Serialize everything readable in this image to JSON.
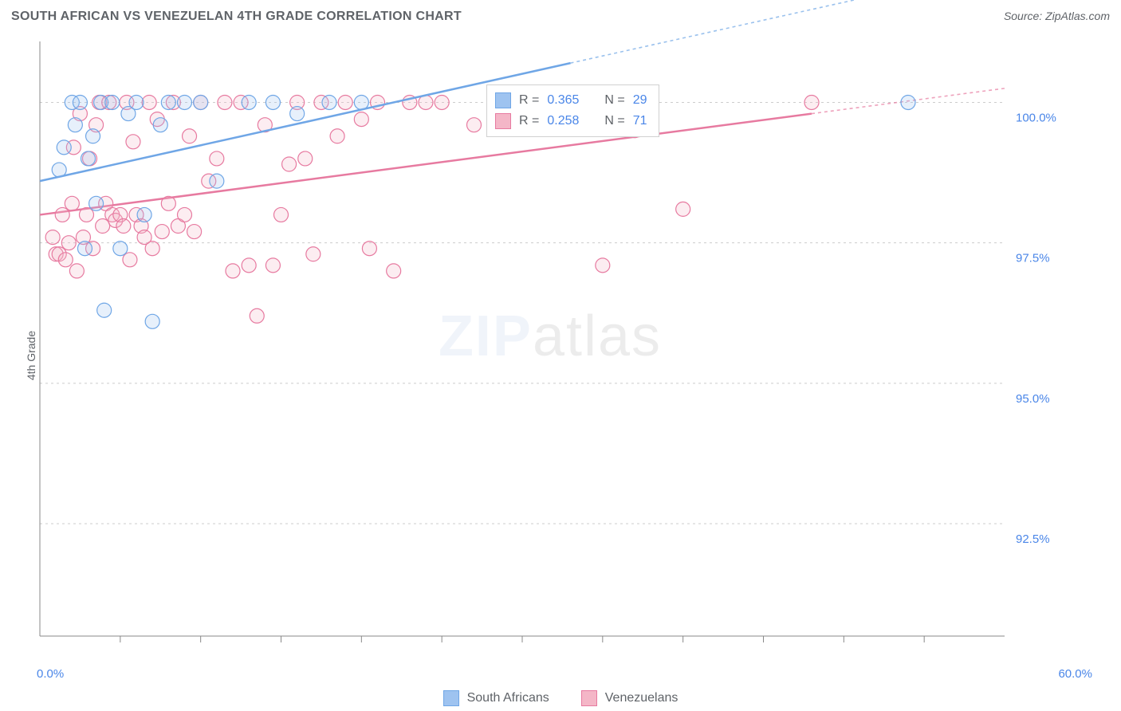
{
  "title": "SOUTH AFRICAN VS VENEZUELAN 4TH GRADE CORRELATION CHART",
  "source_prefix": "Source: ",
  "source_name": "ZipAtlas.com",
  "y_axis_label": "4th Grade",
  "watermark_bold": "ZIP",
  "watermark_rest": "atlas",
  "chart": {
    "type": "scatter-with-trend",
    "background_color": "#ffffff",
    "grid_color": "#cccccc",
    "axis_color": "#888888",
    "xlim": [
      0.0,
      60.0
    ],
    "ylim": [
      90.5,
      101.0
    ],
    "x_tick_positions": [
      5,
      10,
      15,
      20,
      25,
      30,
      35,
      40,
      45,
      50,
      55
    ],
    "x_min_label": "0.0%",
    "x_max_label": "60.0%",
    "y_ticks": [
      {
        "v": 92.5,
        "label": "92.5%"
      },
      {
        "v": 95.0,
        "label": "95.0%"
      },
      {
        "v": 97.5,
        "label": "97.5%"
      },
      {
        "v": 100.0,
        "label": "100.0%"
      }
    ],
    "marker_radius": 9,
    "label_fontsize": 15,
    "value_color": "#4a86e8",
    "series": [
      {
        "key": "south_africans",
        "name": "South Africans",
        "color_fill": "#9ec3f0",
        "color_stroke": "#6fa6e6",
        "R_label": "R = ",
        "R": "0.365",
        "N_label": "N = ",
        "N": "29",
        "trend": {
          "x1": 0,
          "y1": 98.6,
          "x2": 33,
          "y2": 100.7,
          "dash_to_x": 60
        },
        "points": [
          [
            1.2,
            98.8
          ],
          [
            1.5,
            99.2
          ],
          [
            2.0,
            100.0
          ],
          [
            2.2,
            99.6
          ],
          [
            2.5,
            100.0
          ],
          [
            2.8,
            97.4
          ],
          [
            3.0,
            99.0
          ],
          [
            3.3,
            99.4
          ],
          [
            3.5,
            98.2
          ],
          [
            3.8,
            100.0
          ],
          [
            4.0,
            96.3
          ],
          [
            4.5,
            100.0
          ],
          [
            5.0,
            97.4
          ],
          [
            5.5,
            99.8
          ],
          [
            6.0,
            100.0
          ],
          [
            6.5,
            98.0
          ],
          [
            7.0,
            96.1
          ],
          [
            7.5,
            99.6
          ],
          [
            8.0,
            100.0
          ],
          [
            9.0,
            100.0
          ],
          [
            10.0,
            100.0
          ],
          [
            11.0,
            98.6
          ],
          [
            13.0,
            100.0
          ],
          [
            14.5,
            100.0
          ],
          [
            16.0,
            99.8
          ],
          [
            18.0,
            100.0
          ],
          [
            20.0,
            100.0
          ],
          [
            33.0,
            100.0
          ],
          [
            54.0,
            100.0
          ]
        ]
      },
      {
        "key": "venezuelans",
        "name": "Venezuelans",
        "color_fill": "#f4b6c7",
        "color_stroke": "#e77aa0",
        "R_label": "R = ",
        "R": "0.258",
        "N_label": "N = ",
        "N": "71",
        "trend": {
          "x1": 0,
          "y1": 98.0,
          "x2": 48,
          "y2": 99.8,
          "dash_to_x": 60
        },
        "points": [
          [
            0.8,
            97.6
          ],
          [
            1.0,
            97.3
          ],
          [
            1.2,
            97.3
          ],
          [
            1.4,
            98.0
          ],
          [
            1.6,
            97.2
          ],
          [
            1.8,
            97.5
          ],
          [
            2.0,
            98.2
          ],
          [
            2.1,
            99.2
          ],
          [
            2.3,
            97.0
          ],
          [
            2.5,
            99.8
          ],
          [
            2.7,
            97.6
          ],
          [
            2.9,
            98.0
          ],
          [
            3.1,
            99.0
          ],
          [
            3.3,
            97.4
          ],
          [
            3.5,
            99.6
          ],
          [
            3.7,
            100.0
          ],
          [
            3.9,
            97.8
          ],
          [
            4.1,
            98.2
          ],
          [
            4.3,
            100.0
          ],
          [
            4.5,
            98.0
          ],
          [
            4.7,
            97.9
          ],
          [
            5.0,
            98.0
          ],
          [
            5.2,
            97.8
          ],
          [
            5.4,
            100.0
          ],
          [
            5.6,
            97.2
          ],
          [
            5.8,
            99.3
          ],
          [
            6.0,
            98.0
          ],
          [
            6.3,
            97.8
          ],
          [
            6.5,
            97.6
          ],
          [
            6.8,
            100.0
          ],
          [
            7.0,
            97.4
          ],
          [
            7.3,
            99.7
          ],
          [
            7.6,
            97.7
          ],
          [
            8.0,
            98.2
          ],
          [
            8.3,
            100.0
          ],
          [
            8.6,
            97.8
          ],
          [
            9.0,
            98.0
          ],
          [
            9.3,
            99.4
          ],
          [
            9.6,
            97.7
          ],
          [
            10.0,
            100.0
          ],
          [
            10.5,
            98.6
          ],
          [
            11.0,
            99.0
          ],
          [
            11.5,
            100.0
          ],
          [
            12.0,
            97.0
          ],
          [
            12.5,
            100.0
          ],
          [
            13.0,
            97.1
          ],
          [
            13.5,
            96.2
          ],
          [
            14.0,
            99.6
          ],
          [
            14.5,
            97.1
          ],
          [
            15.0,
            98.0
          ],
          [
            15.5,
            98.9
          ],
          [
            16.0,
            100.0
          ],
          [
            16.5,
            99.0
          ],
          [
            17.0,
            97.3
          ],
          [
            17.5,
            100.0
          ],
          [
            18.5,
            99.4
          ],
          [
            19.0,
            100.0
          ],
          [
            20.0,
            99.7
          ],
          [
            20.5,
            97.4
          ],
          [
            21.0,
            100.0
          ],
          [
            22.0,
            97.0
          ],
          [
            23.0,
            100.0
          ],
          [
            24.0,
            100.0
          ],
          [
            25.0,
            100.0
          ],
          [
            27.0,
            99.6
          ],
          [
            29.0,
            100.0
          ],
          [
            31.0,
            100.0
          ],
          [
            35.0,
            97.1
          ],
          [
            37.0,
            99.5
          ],
          [
            40.0,
            98.1
          ],
          [
            48.0,
            100.0
          ]
        ]
      }
    ]
  },
  "legend_bottom": [
    {
      "label": "South Africans",
      "fill": "#9ec3f0",
      "stroke": "#6fa6e6"
    },
    {
      "label": "Venezuelans",
      "fill": "#f4b6c7",
      "stroke": "#e77aa0"
    }
  ]
}
